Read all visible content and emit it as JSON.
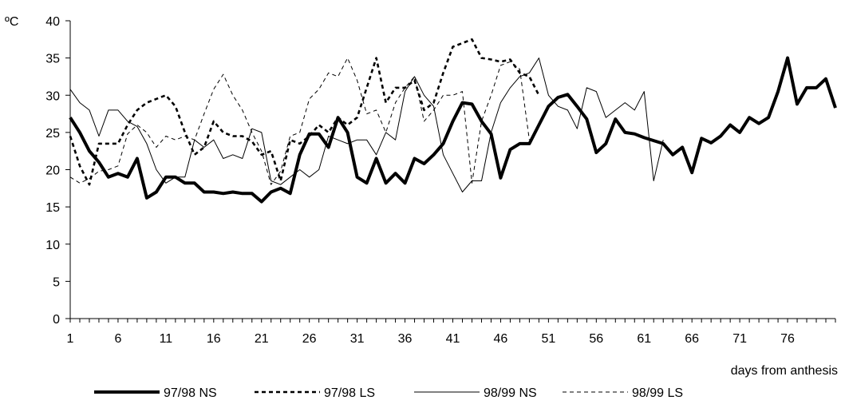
{
  "chart_data": {
    "type": "line",
    "ylabel": "ºC",
    "xlabel": "days from anthesis",
    "ylim": [
      0,
      40
    ],
    "xlim": [
      1,
      81
    ],
    "yticks": [
      0,
      5,
      10,
      15,
      20,
      25,
      30,
      35,
      40
    ],
    "xticks": [
      1,
      6,
      11,
      16,
      21,
      26,
      31,
      36,
      41,
      46,
      51,
      56,
      61,
      66,
      71,
      76
    ],
    "grid": false,
    "legend_position": "bottom",
    "series": [
      {
        "name": "97/98 NS",
        "style": "thick-solid",
        "color": "#000000",
        "x_start": 1,
        "values": [
          27,
          25,
          22.5,
          21,
          19,
          19.5,
          19,
          21.5,
          16.2,
          17,
          19,
          19,
          18.2,
          18.2,
          17,
          17,
          16.8,
          17,
          16.8,
          16.8,
          15.7,
          17,
          17.5,
          16.8,
          22,
          24.8,
          24.8,
          23,
          27,
          25,
          19,
          18.2,
          21.5,
          18.2,
          19.5,
          18.2,
          21.5,
          20.8,
          22,
          23.5,
          26.5,
          29,
          28.8,
          26.5,
          24.8,
          18.9,
          22.7,
          23.5,
          23.5,
          26,
          28.5,
          29.7,
          30.1,
          28.5,
          26.8,
          22.3,
          23.5,
          26.8,
          25,
          24.8,
          24.3,
          23.9,
          23.5,
          22,
          23,
          19.6,
          24.2,
          23.6,
          24.5,
          26,
          25,
          27,
          26.2,
          27,
          30.5,
          35,
          28.8,
          31,
          31,
          32.2,
          28.3
        ]
      },
      {
        "name": "97/98 LS",
        "style": "thick-dashed",
        "color": "#000000",
        "x_start": 1,
        "values": [
          24.5,
          20.5,
          18,
          23.5,
          23.5,
          23.5,
          26,
          28,
          29,
          29.5,
          30,
          28.5,
          25,
          22,
          23,
          26.5,
          25,
          24.5,
          24.5,
          23.8,
          22,
          22.5,
          18.5,
          24,
          23.5,
          24.5,
          26,
          25,
          27,
          26,
          27,
          31,
          35,
          29,
          31,
          31,
          32,
          28,
          29,
          33,
          36.5,
          37,
          37.5,
          35,
          34.8,
          34.5,
          34.8,
          33,
          32.5,
          30
        ]
      },
      {
        "name": "98/99 NS",
        "style": "thin-solid",
        "color": "#000000",
        "x_start": 1,
        "values": [
          30.8,
          29,
          28,
          24.5,
          28,
          28,
          26.5,
          25.8,
          23.5,
          20,
          18.2,
          19,
          19,
          24,
          23,
          24,
          21.5,
          22,
          21.5,
          25.5,
          25,
          18.5,
          18,
          19,
          20,
          19,
          20,
          24.5,
          24,
          23.5,
          24,
          24,
          22,
          25,
          24,
          30.5,
          32.5,
          30,
          28.5,
          22,
          19.5,
          17,
          18.5,
          18.5,
          25,
          29,
          31,
          32.5,
          33,
          35,
          30,
          28.5,
          28,
          25.5,
          31,
          30.5,
          27,
          28,
          29,
          28,
          30.5,
          18.5,
          24
        ]
      },
      {
        "name": "98/99 LS",
        "style": "thin-dashed",
        "color": "#000000",
        "x_start": 1,
        "values": [
          19,
          18.2,
          18.8,
          19.8,
          20,
          20.5,
          24.8,
          26,
          25,
          23,
          24.5,
          24,
          24.5,
          24,
          27.5,
          30.8,
          32.8,
          30,
          28,
          25,
          22.5,
          18,
          19.8,
          24.5,
          25,
          29.5,
          30.8,
          33,
          32.5,
          35,
          32,
          27.5,
          28,
          25,
          29,
          31,
          32.5,
          26.5,
          28,
          30,
          30,
          30.5,
          18.2,
          26.5,
          30,
          34,
          34.5,
          33.5,
          24
        ]
      }
    ]
  }
}
